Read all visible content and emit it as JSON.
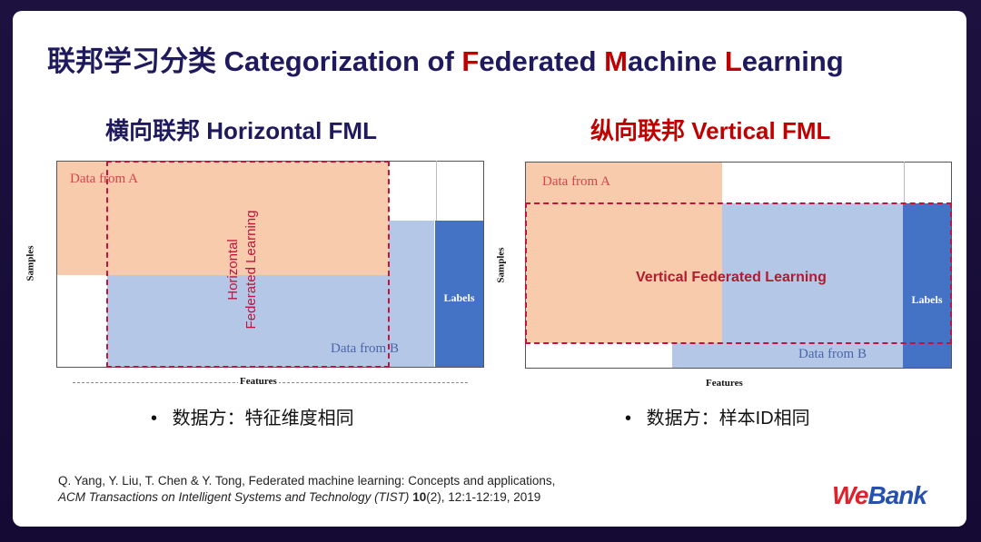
{
  "title": {
    "prefix": "联邦学习分类 Categorization of ",
    "F": "F",
    "ederated": "ederated ",
    "M": "M",
    "achine": "achine ",
    "L": "L",
    "earning": "earning"
  },
  "horizontal": {
    "heading": "横向联邦 Horizontal FML",
    "data_a": "Data from A",
    "data_b": "Data from B",
    "region_line1": "Horizontal",
    "region_line2": "Federated Learning",
    "labels": "Labels",
    "samples": "Samples",
    "features": "Features",
    "bullet": "数据方：特征维度相同"
  },
  "vertical": {
    "heading": "纵向联邦 Vertical FML",
    "data_a": "Data from A",
    "data_b": "Data from B",
    "region": "Vertical Federated Learning",
    "labels": "Labels",
    "samples": "Samples",
    "features": "Features",
    "bullet": "数据方：样本ID相同"
  },
  "reference": {
    "line1": "Q. Yang, Y. Liu, T. Chen & Y. Tong, Federated machine learning: Concepts and applications,",
    "journal": "ACM Transactions on Intelligent Systems and Technology (TIST)",
    "volume": "10",
    "rest": "(2), 12:1-12:19, 2019"
  },
  "logo": {
    "we": "We",
    "bank": "Bank"
  },
  "colors": {
    "title": "#1f1a5e",
    "accent": "#c00000",
    "orange": "#f8cbad",
    "light_blue": "#b4c7e7",
    "dark_blue": "#4472c4"
  }
}
